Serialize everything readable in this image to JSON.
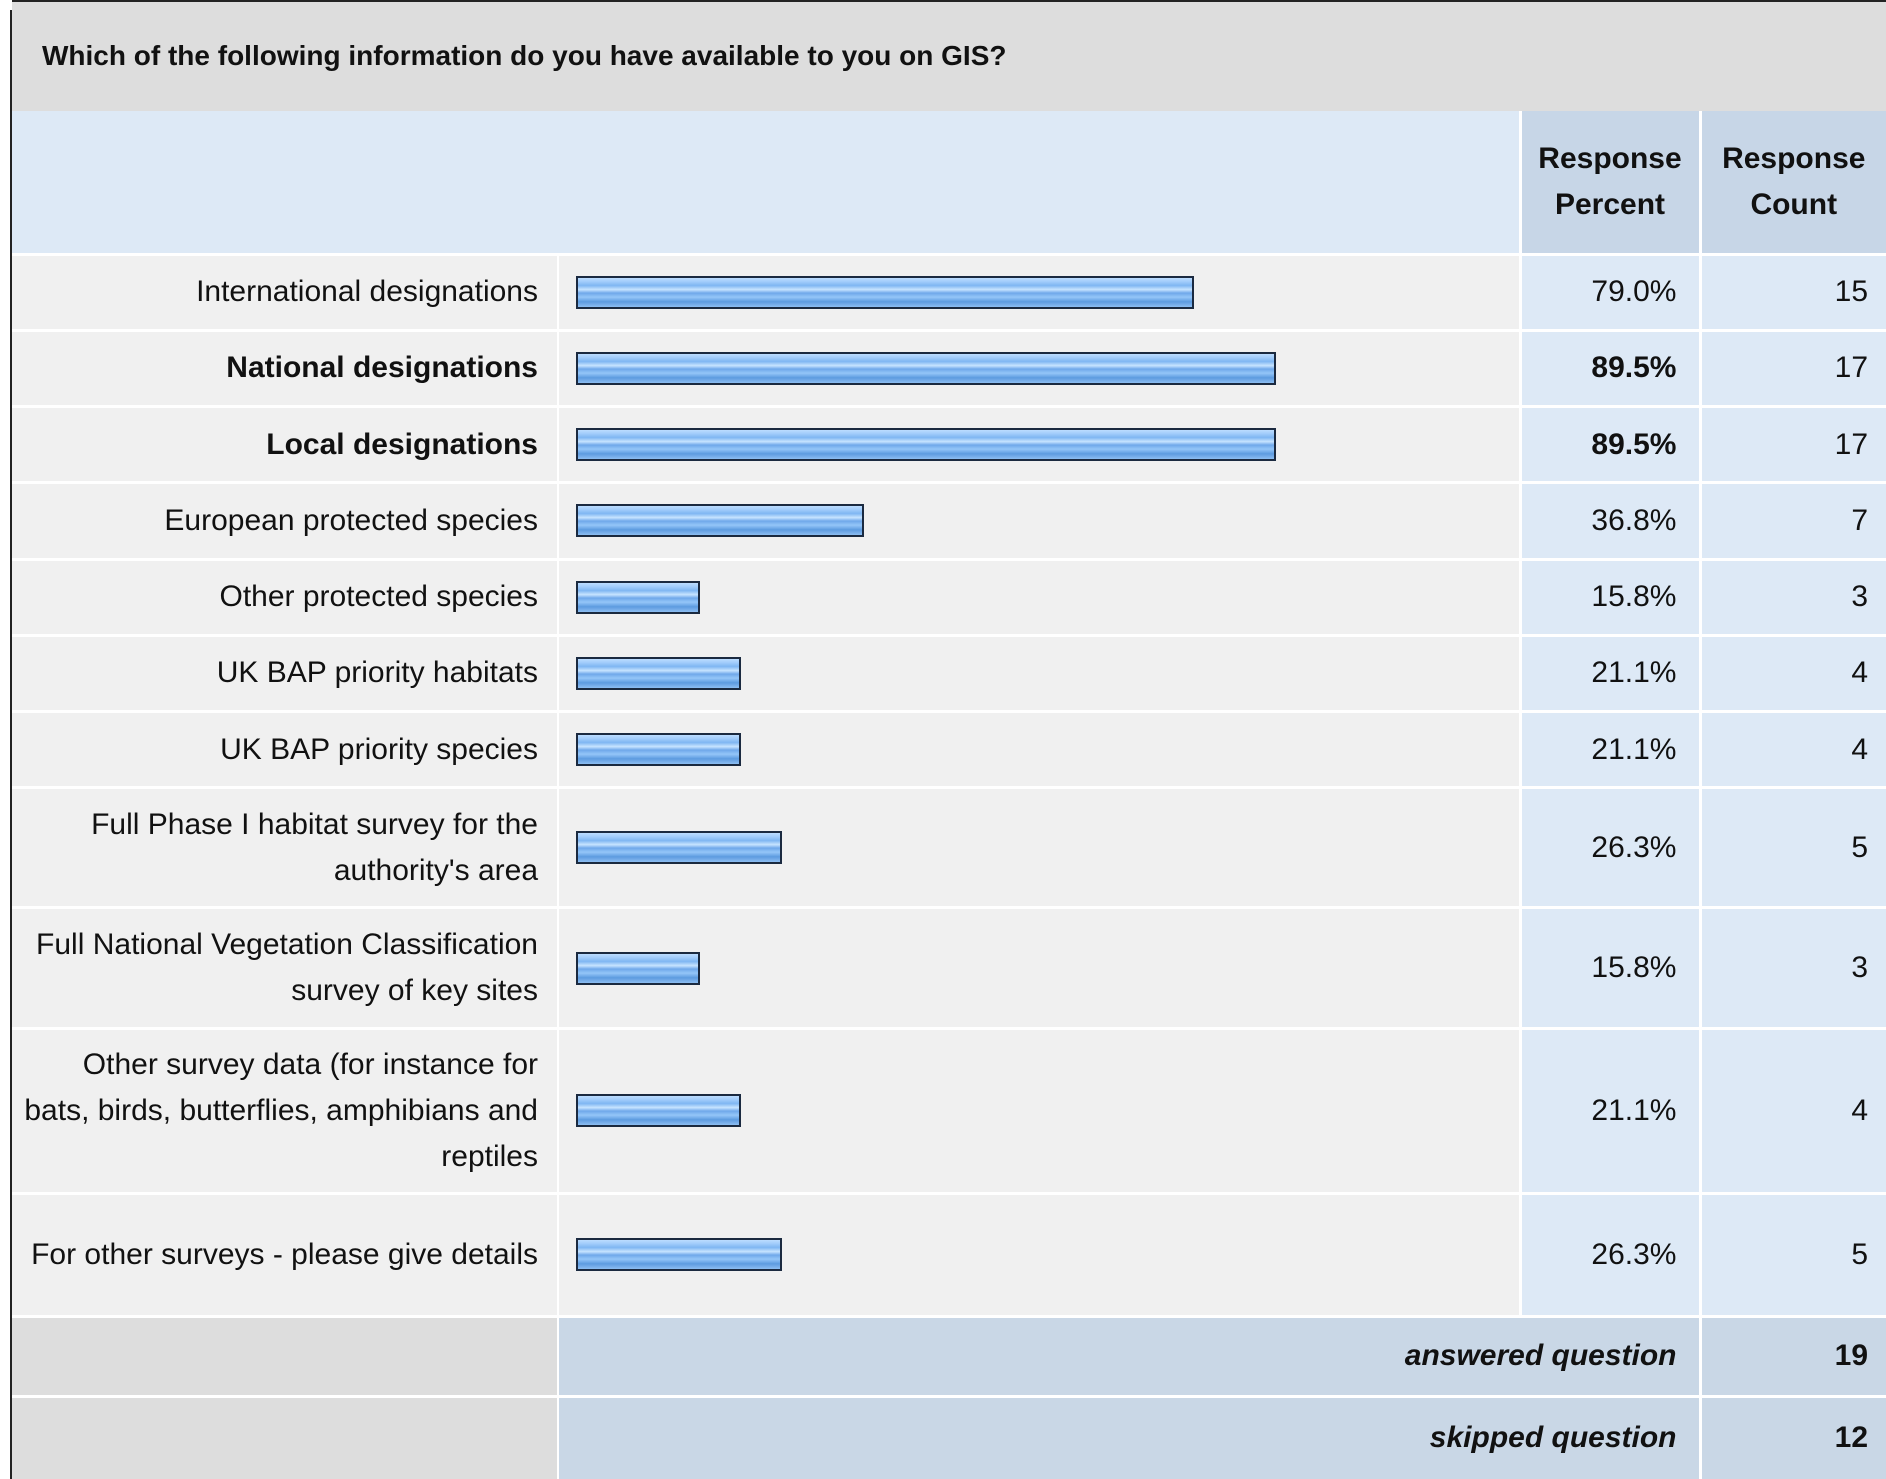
{
  "chart_data": {
    "type": "bar",
    "title": "Which of the following information do you have available to you on GIS?",
    "column_headers": {
      "percent": [
        "Response",
        "Percent"
      ],
      "count": [
        "Response",
        "Count"
      ]
    },
    "categories": [
      "International designations",
      "National designations",
      "Local designations",
      "European protected species",
      "Other protected species",
      "UK BAP priority habitats",
      "UK BAP priority species",
      "Full Phase I habitat survey for the authority's area",
      "Full National Vegetation Classification survey of key sites",
      "Other survey data (for instance for bats, birds, butterflies, amphibians and reptiles",
      "For other surveys - please give details"
    ],
    "values": [
      79.0,
      89.5,
      89.5,
      36.8,
      15.8,
      21.1,
      21.1,
      26.3,
      15.8,
      21.1,
      26.3
    ],
    "percent_labels": [
      "79.0%",
      "89.5%",
      "89.5%",
      "36.8%",
      "15.8%",
      "21.1%",
      "21.1%",
      "26.3%",
      "15.8%",
      "21.1%",
      "26.3%"
    ],
    "counts": [
      "15",
      "17",
      "17",
      "7",
      "3",
      "4",
      "4",
      "5",
      "3",
      "4",
      "5"
    ],
    "highlighted": [
      false,
      true,
      true,
      false,
      false,
      false,
      false,
      false,
      false,
      false,
      false
    ],
    "xlim": [
      0,
      100
    ],
    "bar_color": "#7fb6f2",
    "bar_border_color": "#1b2a40"
  },
  "summary": {
    "answered_label": "answered question",
    "answered_value": "19",
    "skipped_label": "skipped question",
    "skipped_value": "12"
  }
}
